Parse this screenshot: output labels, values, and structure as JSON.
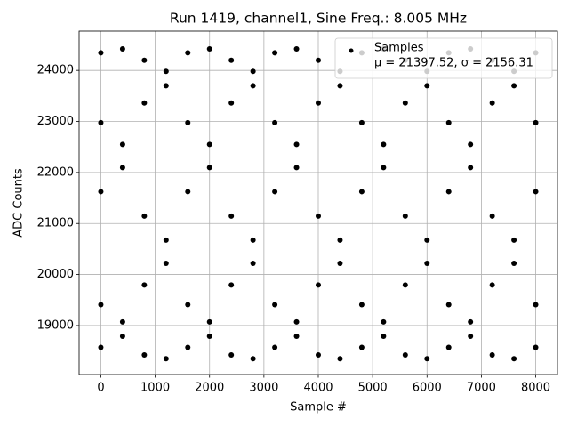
{
  "chart_data": {
    "type": "scatter",
    "title": "Run 1419, channel1, Sine Freq.: 8.005 MHz",
    "xlabel": "Sample #",
    "ylabel": "ADC Counts",
    "legend_note": "μ = 21397.52, σ = 2156.31",
    "legend": "upper right",
    "grid": true,
    "xlim": [
      -400,
      8400
    ],
    "ylim": [
      18040,
      24770
    ],
    "xticks": [
      0,
      1000,
      2000,
      3000,
      4000,
      5000,
      6000,
      7000,
      8000
    ],
    "yticks": [
      19000,
      20000,
      21000,
      22000,
      23000,
      24000
    ],
    "series": [
      {
        "name": "Samples",
        "color": "#000000",
        "x": [
          0,
          400,
          800,
          1200,
          1600,
          2000,
          2400,
          2800,
          3200,
          3600,
          4000,
          4400,
          4800,
          5200,
          5600,
          6000,
          6400,
          6800,
          7200,
          7600,
          8000,
          0,
          400,
          800,
          1200,
          1600,
          2000,
          2400,
          2800,
          3200,
          3600,
          4000,
          4400,
          4800,
          5200,
          5600,
          6000,
          6400,
          6800,
          7200,
          7600,
          8000,
          0,
          400,
          800,
          1200,
          1600,
          2000,
          2400,
          2800,
          3200,
          3600,
          4000,
          4400,
          4800,
          5200,
          5600,
          6000,
          6400,
          6800,
          7200,
          7600,
          8000,
          0,
          400,
          800,
          1200,
          1600,
          2000,
          2400,
          2800,
          3200,
          3600,
          4000,
          4400,
          4800,
          5200,
          5600,
          6000,
          6400,
          6800,
          7200,
          7600,
          8000,
          0,
          400,
          800,
          1200,
          1600,
          2000,
          2400,
          2800,
          3200,
          3600,
          4000,
          4400,
          4800,
          5200,
          5600,
          6000,
          6400,
          6800,
          7200,
          7600,
          8000
        ],
        "values": [
          24346,
          24421,
          24198,
          23700,
          22976,
          22096,
          21146,
          20220,
          19408,
          18789,
          18424,
          18349,
          18572,
          19070,
          19794,
          20674,
          21624,
          22550,
          23362,
          23981,
          24346,
          21624,
          22550,
          23362,
          23981,
          24346,
          24421,
          24198,
          23700,
          22976,
          22096,
          21146,
          20220,
          19408,
          18789,
          18424,
          18349,
          18572,
          19070,
          19794,
          20674,
          21624,
          18572,
          19070,
          19794,
          20674,
          21624,
          22550,
          23362,
          23981,
          24346,
          24421,
          24198,
          23700,
          22976,
          22096,
          21146,
          20220,
          19408,
          18789,
          18424,
          18349,
          18572,
          19408,
          18789,
          18424,
          18349,
          18572,
          19070,
          19794,
          20674,
          21624,
          22550,
          23362,
          23981,
          24346,
          24421,
          24198,
          23700,
          22976,
          22096,
          21146,
          20220,
          19408,
          22976,
          22096,
          21146,
          20220,
          19408,
          18789,
          18424,
          18349,
          18572,
          19070,
          19794,
          20674,
          21624,
          22550,
          23362,
          23981,
          24346,
          24421,
          24198,
          23700,
          22976
        ]
      }
    ]
  }
}
